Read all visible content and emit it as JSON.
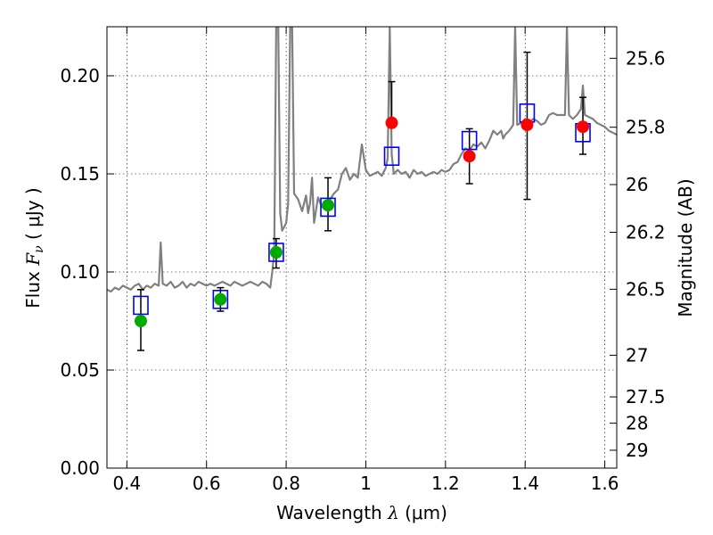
{
  "chart_data": {
    "type": "scatter",
    "title": "",
    "xlabel": {
      "prefix": "Wavelength",
      "symbol": "λ",
      "unit": "(μm)"
    },
    "ylabel": {
      "prefix": "Flux",
      "symbol": "F",
      "subscript": "ν",
      "unit": "( μJy )"
    },
    "y2label": "Magnitude (AB)",
    "xlim": [
      0.35,
      1.63
    ],
    "ylim": [
      0.0,
      0.225
    ],
    "grid": true,
    "x_ticks": [
      {
        "value": 0.4,
        "label": "0.4"
      },
      {
        "value": 0.6,
        "label": "0.6"
      },
      {
        "value": 0.8,
        "label": "0.8"
      },
      {
        "value": 1.0,
        "label": "1"
      },
      {
        "value": 1.2,
        "label": "1.2"
      },
      {
        "value": 1.4,
        "label": "1.4"
      },
      {
        "value": 1.6,
        "label": "1.6"
      }
    ],
    "y_ticks": [
      {
        "value": 0.0,
        "label": "0.00"
      },
      {
        "value": 0.05,
        "label": "0.05"
      },
      {
        "value": 0.1,
        "label": "0.10"
      },
      {
        "value": 0.15,
        "label": "0.15"
      },
      {
        "value": 0.2,
        "label": "0.20"
      }
    ],
    "y2_ticks": [
      {
        "value": 25.6,
        "label": "25.6"
      },
      {
        "value": 25.8,
        "label": "25.8"
      },
      {
        "value": 26.0,
        "label": "26"
      },
      {
        "value": 26.2,
        "label": "26.2"
      },
      {
        "value": 26.5,
        "label": "26.5"
      },
      {
        "value": 27.0,
        "label": "27"
      },
      {
        "value": 27.5,
        "label": "27.5"
      },
      {
        "value": 28.0,
        "label": "28"
      },
      {
        "value": 29.0,
        "label": "29"
      }
    ],
    "series": [
      {
        "kind": "model-spectrum",
        "color": "#808080",
        "points": [
          [
            0.35,
            0.091
          ],
          [
            0.36,
            0.09
          ],
          [
            0.37,
            0.092
          ],
          [
            0.38,
            0.091
          ],
          [
            0.39,
            0.093
          ],
          [
            0.4,
            0.092
          ],
          [
            0.41,
            0.091
          ],
          [
            0.42,
            0.093
          ],
          [
            0.43,
            0.094
          ],
          [
            0.44,
            0.091
          ],
          [
            0.45,
            0.093
          ],
          [
            0.46,
            0.092
          ],
          [
            0.47,
            0.094
          ],
          [
            0.48,
            0.093
          ],
          [
            0.485,
            0.115
          ],
          [
            0.49,
            0.094
          ],
          [
            0.5,
            0.093
          ],
          [
            0.51,
            0.095
          ],
          [
            0.52,
            0.092
          ],
          [
            0.53,
            0.093
          ],
          [
            0.54,
            0.095
          ],
          [
            0.55,
            0.092
          ],
          [
            0.56,
            0.094
          ],
          [
            0.57,
            0.093
          ],
          [
            0.58,
            0.095
          ],
          [
            0.59,
            0.094
          ],
          [
            0.6,
            0.093
          ],
          [
            0.61,
            0.094
          ],
          [
            0.62,
            0.093
          ],
          [
            0.63,
            0.094
          ],
          [
            0.64,
            0.095
          ],
          [
            0.65,
            0.094
          ],
          [
            0.66,
            0.093
          ],
          [
            0.67,
            0.095
          ],
          [
            0.68,
            0.094
          ],
          [
            0.69,
            0.093
          ],
          [
            0.7,
            0.094
          ],
          [
            0.71,
            0.095
          ],
          [
            0.72,
            0.094
          ],
          [
            0.73,
            0.093
          ],
          [
            0.74,
            0.095
          ],
          [
            0.75,
            0.094
          ],
          [
            0.76,
            0.092
          ],
          [
            0.765,
            0.1
          ],
          [
            0.77,
            0.11
          ],
          [
            0.775,
            0.225
          ],
          [
            0.78,
            0.225
          ],
          [
            0.785,
            0.13
          ],
          [
            0.79,
            0.121
          ],
          [
            0.8,
            0.125
          ],
          [
            0.805,
            0.135
          ],
          [
            0.81,
            0.225
          ],
          [
            0.815,
            0.225
          ],
          [
            0.82,
            0.14
          ],
          [
            0.83,
            0.137
          ],
          [
            0.84,
            0.131
          ],
          [
            0.85,
            0.139
          ],
          [
            0.855,
            0.13
          ],
          [
            0.86,
            0.135
          ],
          [
            0.865,
            0.148
          ],
          [
            0.87,
            0.125
          ],
          [
            0.88,
            0.138
          ],
          [
            0.89,
            0.133
          ],
          [
            0.9,
            0.135
          ],
          [
            0.91,
            0.137
          ],
          [
            0.92,
            0.14
          ],
          [
            0.93,
            0.142
          ],
          [
            0.94,
            0.15
          ],
          [
            0.95,
            0.153
          ],
          [
            0.96,
            0.147
          ],
          [
            0.97,
            0.15
          ],
          [
            0.98,
            0.148
          ],
          [
            0.99,
            0.165
          ],
          [
            1.0,
            0.152
          ],
          [
            1.01,
            0.149
          ],
          [
            1.02,
            0.15
          ],
          [
            1.03,
            0.151
          ],
          [
            1.04,
            0.149
          ],
          [
            1.05,
            0.153
          ],
          [
            1.055,
            0.158
          ],
          [
            1.06,
            0.225
          ],
          [
            1.065,
            0.16
          ],
          [
            1.07,
            0.15
          ],
          [
            1.08,
            0.152
          ],
          [
            1.09,
            0.15
          ],
          [
            1.1,
            0.151
          ],
          [
            1.11,
            0.148
          ],
          [
            1.12,
            0.152
          ],
          [
            1.13,
            0.15
          ],
          [
            1.14,
            0.151
          ],
          [
            1.15,
            0.149
          ],
          [
            1.16,
            0.15
          ],
          [
            1.17,
            0.151
          ],
          [
            1.18,
            0.15
          ],
          [
            1.19,
            0.152
          ],
          [
            1.2,
            0.151
          ],
          [
            1.21,
            0.152
          ],
          [
            1.22,
            0.155
          ],
          [
            1.23,
            0.156
          ],
          [
            1.24,
            0.16
          ],
          [
            1.25,
            0.163
          ],
          [
            1.26,
            0.162
          ],
          [
            1.27,
            0.165
          ],
          [
            1.28,
            0.164
          ],
          [
            1.29,
            0.166
          ],
          [
            1.3,
            0.163
          ],
          [
            1.31,
            0.167
          ],
          [
            1.32,
            0.172
          ],
          [
            1.33,
            0.17
          ],
          [
            1.34,
            0.172
          ],
          [
            1.345,
            0.168
          ],
          [
            1.35,
            0.17
          ],
          [
            1.36,
            0.172
          ],
          [
            1.37,
            0.175
          ],
          [
            1.375,
            0.225
          ],
          [
            1.38,
            0.175
          ],
          [
            1.39,
            0.176
          ],
          [
            1.4,
            0.178
          ],
          [
            1.41,
            0.176
          ],
          [
            1.42,
            0.178
          ],
          [
            1.43,
            0.177
          ],
          [
            1.44,
            0.175
          ],
          [
            1.45,
            0.176
          ],
          [
            1.46,
            0.18
          ],
          [
            1.47,
            0.181
          ],
          [
            1.48,
            0.18
          ],
          [
            1.49,
            0.18
          ],
          [
            1.5,
            0.18
          ],
          [
            1.505,
            0.225
          ],
          [
            1.51,
            0.18
          ],
          [
            1.52,
            0.178
          ],
          [
            1.53,
            0.18
          ],
          [
            1.54,
            0.183
          ],
          [
            1.545,
            0.195
          ],
          [
            1.55,
            0.18
          ],
          [
            1.56,
            0.179
          ],
          [
            1.57,
            0.178
          ],
          [
            1.58,
            0.176
          ],
          [
            1.59,
            0.175
          ],
          [
            1.6,
            0.174
          ],
          [
            1.61,
            0.172
          ],
          [
            1.62,
            0.171
          ],
          [
            1.63,
            0.17
          ]
        ]
      },
      {
        "kind": "model-photometry",
        "marker": "open-square",
        "color": "#0000ff",
        "points": [
          {
            "x": 0.435,
            "y": 0.083
          },
          {
            "x": 0.635,
            "y": 0.086
          },
          {
            "x": 0.775,
            "y": 0.11
          },
          {
            "x": 0.905,
            "y": 0.133
          },
          {
            "x": 1.065,
            "y": 0.159
          },
          {
            "x": 1.26,
            "y": 0.167
          },
          {
            "x": 1.405,
            "y": 0.181
          },
          {
            "x": 1.545,
            "y": 0.171
          }
        ]
      },
      {
        "kind": "observed",
        "marker": "filled-circle",
        "points": [
          {
            "x": 0.435,
            "y": 0.075,
            "err_low": 0.015,
            "err_high": 0.016,
            "color": "#00aa00"
          },
          {
            "x": 0.635,
            "y": 0.086,
            "err_low": 0.006,
            "err_high": 0.006,
            "color": "#00aa00"
          },
          {
            "x": 0.775,
            "y": 0.11,
            "err_low": 0.008,
            "err_high": 0.007,
            "color": "#00aa00"
          },
          {
            "x": 0.905,
            "y": 0.134,
            "err_low": 0.013,
            "err_high": 0.014,
            "color": "#00aa00"
          },
          {
            "x": 1.065,
            "y": 0.176,
            "err_low": 0.0,
            "err_high": 0.021,
            "color": "#ff0000"
          },
          {
            "x": 1.26,
            "y": 0.159,
            "err_low": 0.014,
            "err_high": 0.014,
            "color": "#ff0000"
          },
          {
            "x": 1.405,
            "y": 0.175,
            "err_low": 0.038,
            "err_high": 0.037,
            "color": "#ff0000"
          },
          {
            "x": 1.545,
            "y": 0.174,
            "err_low": 0.014,
            "err_high": 0.015,
            "color": "#ff0000"
          }
        ]
      }
    ]
  }
}
